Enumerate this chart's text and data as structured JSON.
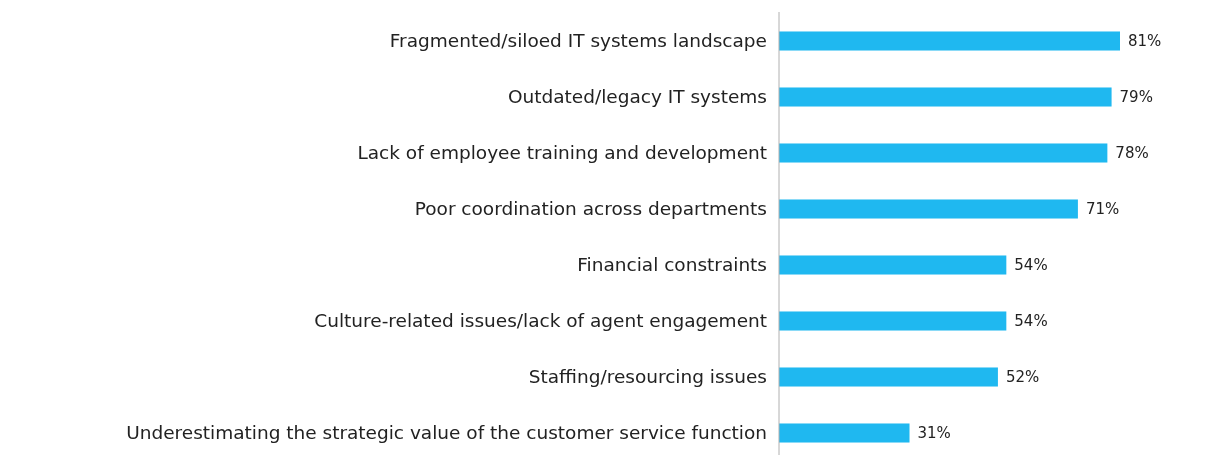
{
  "chart_data": {
    "type": "bar",
    "orientation": "horizontal",
    "categories": [
      "Fragmented/siloed IT systems landscape",
      "Outdated/legacy IT systems",
      "Lack of employee training and development",
      "Poor coordination across departments",
      "Financial constraints",
      "Culture-related issues/lack of agent engagement",
      "Staffing/resourcing issues",
      "Underestimating the strategic value of the customer service function"
    ],
    "values": [
      81,
      79,
      78,
      71,
      54,
      54,
      52,
      31
    ],
    "value_labels": [
      "81%",
      "79%",
      "78%",
      "71%",
      "54%",
      "54%",
      "52%",
      "31%"
    ],
    "color": "#1fb8f0"
  }
}
